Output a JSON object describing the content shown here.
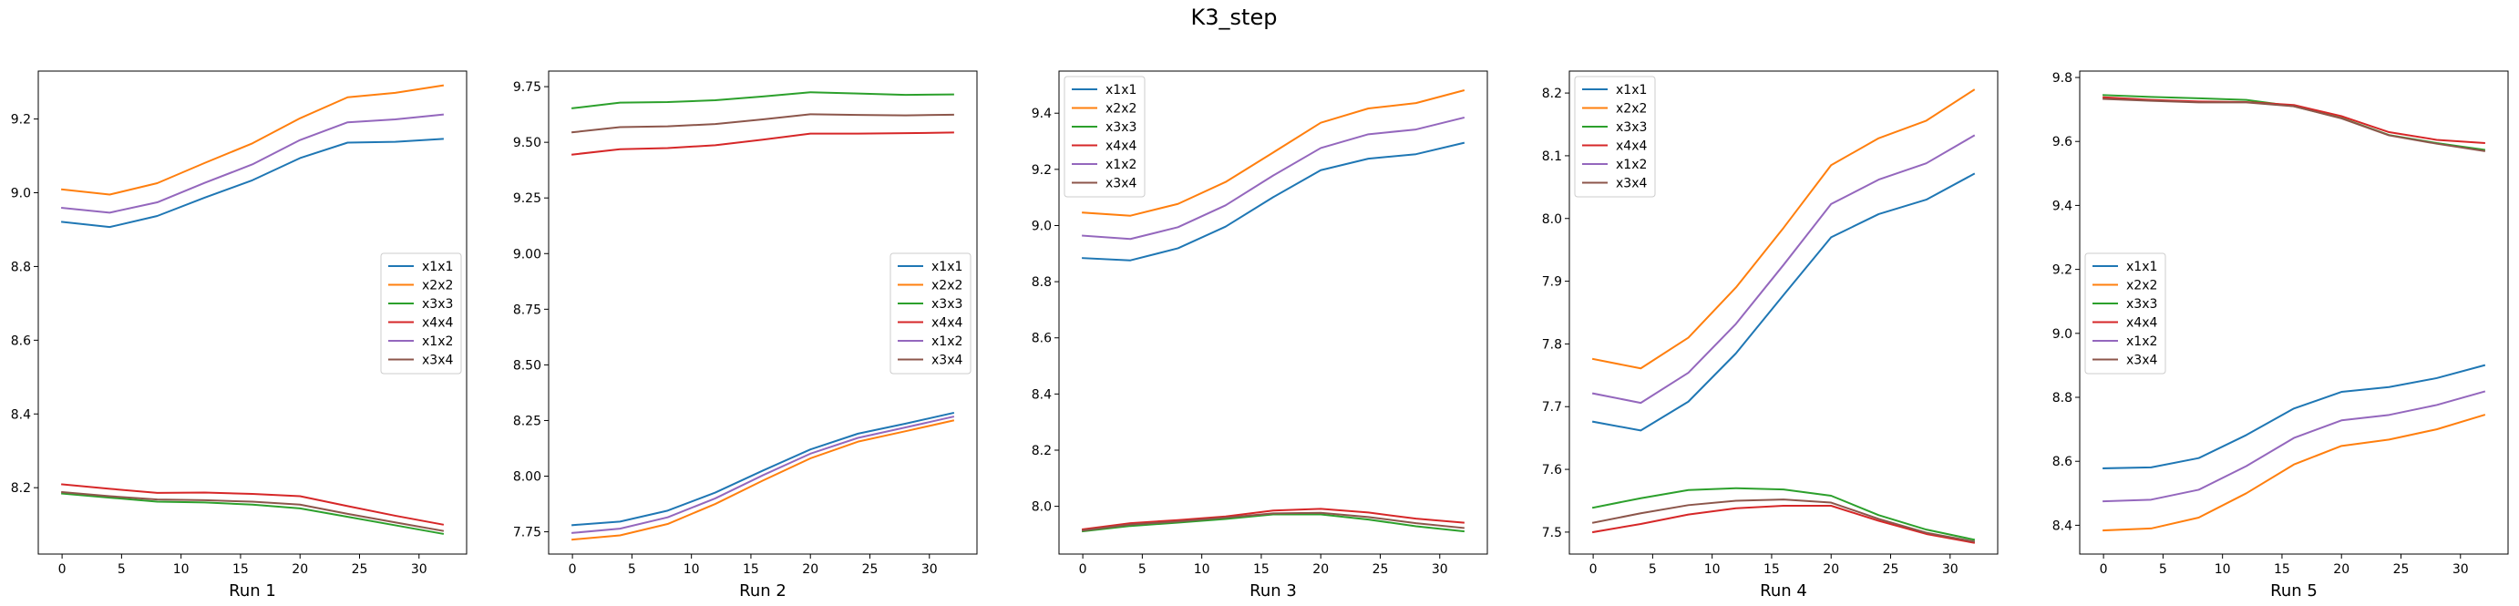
{
  "figure": {
    "title": "K3_step"
  },
  "legend_labels": [
    "x1x1",
    "x2x2",
    "x3x3",
    "x4x4",
    "x1x2",
    "x3x4"
  ],
  "colors": {
    "x1x1": "#1f77b4",
    "x2x2": "#ff7f0e",
    "x3x3": "#2ca02c",
    "x4x4": "#d62728",
    "x1x2": "#9467bd",
    "x3x4": "#8c564b"
  },
  "chart_data": [
    {
      "type": "line",
      "title": "",
      "xlabel": "Run 1",
      "ylabel": "",
      "x": [
        0,
        4,
        8,
        12,
        16,
        20,
        24,
        28,
        32
      ],
      "xticks": [
        0,
        5,
        10,
        15,
        20,
        25,
        30
      ],
      "yticks": [
        8.2,
        8.4,
        8.6,
        8.8,
        9.0,
        9.2
      ],
      "ytick_labels": [
        "8.2",
        "8.4",
        "8.6",
        "8.8",
        "9.0",
        "9.2"
      ],
      "xlim": [
        -2.0,
        34.0
      ],
      "ylim": [
        8.02,
        9.33
      ],
      "grid": false,
      "legend_position": "center-right",
      "series": [
        {
          "name": "x1x1",
          "values": [
            8.921,
            8.907,
            8.937,
            8.987,
            9.034,
            9.094,
            9.136,
            9.138,
            9.146
          ]
        },
        {
          "name": "x2x2",
          "values": [
            9.009,
            8.995,
            9.026,
            9.081,
            9.134,
            9.202,
            9.259,
            9.271,
            9.291
          ]
        },
        {
          "name": "x3x3",
          "values": [
            8.184,
            8.173,
            8.162,
            8.16,
            8.154,
            8.144,
            8.121,
            8.098,
            8.075
          ]
        },
        {
          "name": "x4x4",
          "values": [
            8.209,
            8.197,
            8.186,
            8.187,
            8.183,
            8.177,
            8.15,
            8.124,
            8.1
          ]
        },
        {
          "name": "x1x2",
          "values": [
            8.959,
            8.946,
            8.974,
            9.027,
            9.077,
            9.143,
            9.191,
            9.199,
            9.212
          ]
        },
        {
          "name": "x3x4",
          "values": [
            8.188,
            8.177,
            8.168,
            8.166,
            8.162,
            8.154,
            8.129,
            8.106,
            8.083
          ]
        }
      ]
    },
    {
      "type": "line",
      "title": "",
      "xlabel": "Run 2",
      "ylabel": "",
      "x": [
        0,
        4,
        8,
        12,
        16,
        20,
        24,
        28,
        32
      ],
      "xticks": [
        0,
        5,
        10,
        15,
        20,
        25,
        30
      ],
      "yticks": [
        7.75,
        8.0,
        8.25,
        8.5,
        8.75,
        9.0,
        9.25,
        9.5,
        9.75
      ],
      "ytick_labels": [
        "7.75",
        "8.00",
        "8.25",
        "8.50",
        "8.75",
        "9.00",
        "9.25",
        "9.50",
        "9.75"
      ],
      "xlim": [
        -2.0,
        34.0
      ],
      "ylim": [
        7.65,
        9.82
      ],
      "grid": false,
      "legend_position": "center-right",
      "series": [
        {
          "name": "x1x1",
          "values": [
            7.78,
            7.796,
            7.845,
            7.926,
            8.025,
            8.12,
            8.191,
            8.236,
            8.284
          ]
        },
        {
          "name": "x2x2",
          "values": [
            7.715,
            7.734,
            7.785,
            7.875,
            7.98,
            8.08,
            8.155,
            8.202,
            8.25
          ]
        },
        {
          "name": "x3x3",
          "values": [
            9.653,
            9.678,
            9.681,
            9.689,
            9.706,
            9.725,
            9.719,
            9.713,
            9.715
          ]
        },
        {
          "name": "x4x4",
          "values": [
            9.445,
            9.469,
            9.474,
            9.487,
            9.512,
            9.539,
            9.539,
            9.541,
            9.544
          ]
        },
        {
          "name": "x1x2",
          "values": [
            7.745,
            7.764,
            7.815,
            7.9,
            8.004,
            8.101,
            8.172,
            8.219,
            8.267
          ]
        },
        {
          "name": "x3x4",
          "values": [
            9.545,
            9.568,
            9.572,
            9.582,
            9.603,
            9.626,
            9.623,
            9.621,
            9.624
          ]
        }
      ]
    },
    {
      "type": "line",
      "title": "",
      "xlabel": "Run 3",
      "ylabel": "",
      "x": [
        0,
        4,
        8,
        12,
        16,
        20,
        24,
        28,
        32
      ],
      "xticks": [
        0,
        5,
        10,
        15,
        20,
        25,
        30
      ],
      "yticks": [
        8.0,
        8.2,
        8.4,
        8.6,
        8.8,
        9.0,
        9.2,
        9.4
      ],
      "ytick_labels": [
        "8.0",
        "8.2",
        "8.4",
        "8.6",
        "8.8",
        "9.0",
        "9.2",
        "9.4"
      ],
      "xlim": [
        -2.0,
        34.0
      ],
      "ylim": [
        7.83,
        9.55
      ],
      "grid": false,
      "legend_position": "upper-left",
      "series": [
        {
          "name": "x1x1",
          "values": [
            8.884,
            8.876,
            8.919,
            8.996,
            9.101,
            9.197,
            9.238,
            9.254,
            9.294
          ]
        },
        {
          "name": "x2x2",
          "values": [
            9.046,
            9.035,
            9.077,
            9.155,
            9.26,
            9.366,
            9.417,
            9.436,
            9.481
          ]
        },
        {
          "name": "x3x3",
          "values": [
            7.911,
            7.93,
            7.942,
            7.955,
            7.971,
            7.971,
            7.953,
            7.929,
            7.911
          ]
        },
        {
          "name": "x4x4",
          "values": [
            7.918,
            7.94,
            7.951,
            7.964,
            7.985,
            7.991,
            7.978,
            7.956,
            7.942
          ]
        },
        {
          "name": "x1x2",
          "values": [
            8.964,
            8.952,
            8.994,
            9.072,
            9.178,
            9.276,
            9.325,
            9.342,
            9.384
          ]
        },
        {
          "name": "x3x4",
          "values": [
            7.914,
            7.935,
            7.946,
            7.96,
            7.975,
            7.977,
            7.962,
            7.94,
            7.923
          ]
        }
      ]
    },
    {
      "type": "line",
      "title": "",
      "xlabel": "Run 4",
      "ylabel": "",
      "x": [
        0,
        4,
        8,
        12,
        16,
        20,
        24,
        28,
        32
      ],
      "xticks": [
        0,
        5,
        10,
        15,
        20,
        25,
        30
      ],
      "yticks": [
        7.5,
        7.6,
        7.7,
        7.8,
        7.9,
        8.0,
        8.1,
        8.2
      ],
      "ytick_labels": [
        "7.5",
        "7.6",
        "7.7",
        "7.8",
        "7.9",
        "8.0",
        "8.1",
        "8.2"
      ],
      "xlim": [
        -2.0,
        34.0
      ],
      "ylim": [
        7.465,
        8.235
      ],
      "grid": false,
      "legend_position": "upper-left",
      "series": [
        {
          "name": "x1x1",
          "values": [
            7.676,
            7.662,
            7.708,
            7.785,
            7.878,
            7.97,
            8.007,
            8.03,
            8.071
          ]
        },
        {
          "name": "x2x2",
          "values": [
            7.776,
            7.761,
            7.81,
            7.89,
            7.985,
            8.085,
            8.128,
            8.156,
            8.205
          ]
        },
        {
          "name": "x3x3",
          "values": [
            7.539,
            7.554,
            7.567,
            7.57,
            7.568,
            7.558,
            7.527,
            7.504,
            7.488
          ]
        },
        {
          "name": "x4x4",
          "values": [
            7.5,
            7.513,
            7.528,
            7.538,
            7.542,
            7.542,
            7.518,
            7.497,
            7.483
          ]
        },
        {
          "name": "x1x2",
          "values": [
            7.721,
            7.706,
            7.754,
            7.832,
            7.926,
            8.023,
            8.062,
            8.088,
            8.132
          ]
        },
        {
          "name": "x3x4",
          "values": [
            7.515,
            7.53,
            7.543,
            7.55,
            7.552,
            7.547,
            7.521,
            7.499,
            7.485
          ]
        }
      ]
    },
    {
      "type": "line",
      "title": "",
      "xlabel": "Run 5",
      "ylabel": "",
      "x": [
        0,
        4,
        8,
        12,
        16,
        20,
        24,
        28,
        32
      ],
      "xticks": [
        0,
        5,
        10,
        15,
        20,
        25,
        30
      ],
      "yticks": [
        8.4,
        8.6,
        8.8,
        9.0,
        9.2,
        9.4,
        9.6,
        9.8
      ],
      "ytick_labels": [
        "8.4",
        "8.6",
        "8.8",
        "9.0",
        "9.2",
        "9.4",
        "9.6",
        "9.8"
      ],
      "xlim": [
        -2.0,
        34.0
      ],
      "ylim": [
        8.31,
        9.82
      ],
      "grid": false,
      "legend_position": "center-left",
      "series": [
        {
          "name": "x1x1",
          "values": [
            8.578,
            8.581,
            8.61,
            8.682,
            8.765,
            8.817,
            8.832,
            8.86,
            8.9
          ]
        },
        {
          "name": "x2x2",
          "values": [
            8.384,
            8.39,
            8.424,
            8.5,
            8.59,
            8.648,
            8.668,
            8.7,
            8.745
          ]
        },
        {
          "name": "x3x3",
          "values": [
            9.745,
            9.739,
            9.735,
            9.73,
            9.71,
            9.673,
            9.62,
            9.595,
            9.574
          ]
        },
        {
          "name": "x4x4",
          "values": [
            9.738,
            9.73,
            9.725,
            9.723,
            9.714,
            9.679,
            9.629,
            9.605,
            9.595
          ]
        },
        {
          "name": "x1x2",
          "values": [
            8.475,
            8.48,
            8.511,
            8.585,
            8.673,
            8.728,
            8.745,
            8.776,
            8.818
          ]
        },
        {
          "name": "x3x4",
          "values": [
            9.733,
            9.727,
            9.722,
            9.722,
            9.71,
            9.672,
            9.619,
            9.593,
            9.57
          ]
        }
      ]
    }
  ]
}
